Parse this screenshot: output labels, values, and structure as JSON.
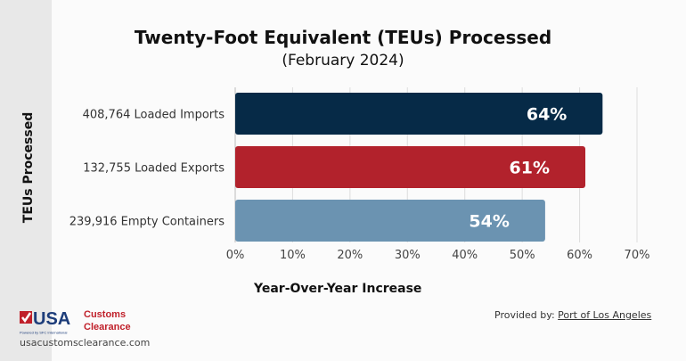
{
  "chart_data": {
    "type": "bar",
    "orientation": "horizontal",
    "title": "Twenty-Foot Equivalent (TEUs) Processed",
    "subtitle": "(February 2024)",
    "xlabel": "Year-Over-Year Increase",
    "ylabel": "TEUs Processed",
    "categories": [
      "408,764 Loaded Imports",
      "132,755 Loaded Exports",
      "239,916 Empty Containers"
    ],
    "values": [
      64,
      61,
      54
    ],
    "data_labels": [
      "64%",
      "61%",
      "54%"
    ],
    "colors": [
      "#062a47",
      "#b2222c",
      "#6b93b1"
    ],
    "xlim": [
      0,
      70
    ],
    "xticks": [
      "0%",
      "10%",
      "20%",
      "30%",
      "40%",
      "50%",
      "60%",
      "70%"
    ],
    "grid": true
  },
  "footer": {
    "provided_by": "Provided by:",
    "source": "Port of Los Angeles",
    "logo_text": "USA Customs Clearance",
    "logo_tagline": "Powered by SFC International",
    "website": "usacustomsclearance.com"
  }
}
